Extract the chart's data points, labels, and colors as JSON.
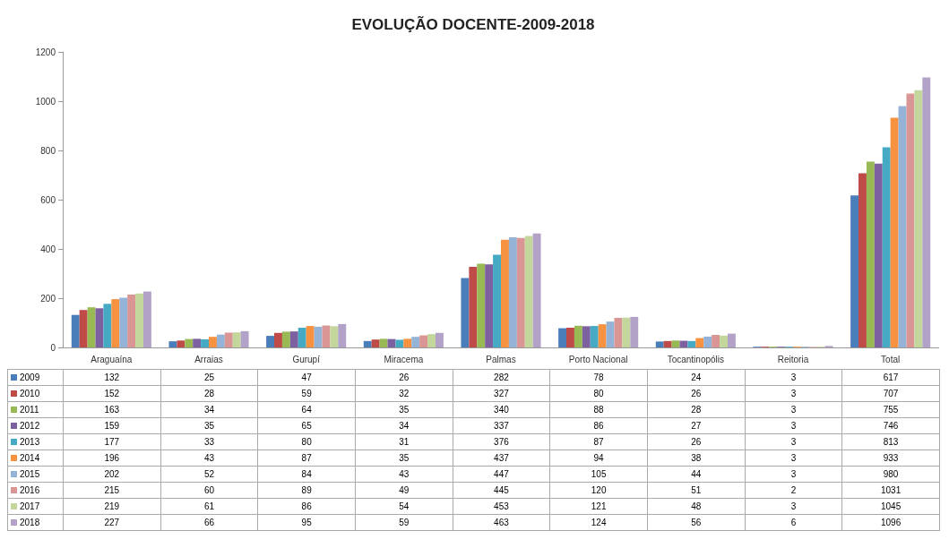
{
  "chart_data": {
    "type": "bar",
    "title": "EVOLUÇÃO DOCENTE-2009-2018",
    "categories": [
      "Araguaína",
      "Arraias",
      "Gurupí",
      "Miracema",
      "Palmas",
      "Porto Nacional",
      "Tocantinopólis",
      "Reitoria",
      "Total"
    ],
    "series": [
      {
        "name": "2009",
        "color": "#4a7ebb",
        "values": [
          132,
          25,
          47,
          26,
          282,
          78,
          24,
          3,
          617
        ]
      },
      {
        "name": "2010",
        "color": "#be4b48",
        "values": [
          152,
          28,
          59,
          32,
          327,
          80,
          26,
          3,
          707
        ]
      },
      {
        "name": "2011",
        "color": "#98b954",
        "values": [
          163,
          34,
          64,
          35,
          340,
          88,
          28,
          3,
          755
        ]
      },
      {
        "name": "2012",
        "color": "#7d60a0",
        "values": [
          159,
          35,
          65,
          34,
          337,
          86,
          27,
          3,
          746
        ]
      },
      {
        "name": "2013",
        "color": "#46aac5",
        "values": [
          177,
          33,
          80,
          31,
          376,
          87,
          26,
          3,
          813
        ]
      },
      {
        "name": "2014",
        "color": "#f69240",
        "values": [
          196,
          43,
          87,
          35,
          437,
          94,
          38,
          3,
          933
        ]
      },
      {
        "name": "2015",
        "color": "#95b3d7",
        "values": [
          202,
          52,
          84,
          43,
          447,
          105,
          44,
          3,
          980
        ]
      },
      {
        "name": "2016",
        "color": "#d99694",
        "values": [
          215,
          60,
          89,
          49,
          445,
          120,
          51,
          2,
          1031
        ]
      },
      {
        "name": "2017",
        "color": "#c3d69b",
        "values": [
          219,
          61,
          86,
          54,
          453,
          121,
          48,
          3,
          1045
        ]
      },
      {
        "name": "2018",
        "color": "#b3a2c7",
        "values": [
          227,
          66,
          95,
          59,
          463,
          124,
          56,
          6,
          1096
        ]
      }
    ],
    "ylim": [
      0,
      1200
    ],
    "yticks": [
      0,
      200,
      400,
      600,
      800,
      1000,
      1200
    ],
    "grid": false,
    "legend": "bottom left",
    "data_labels": true
  }
}
